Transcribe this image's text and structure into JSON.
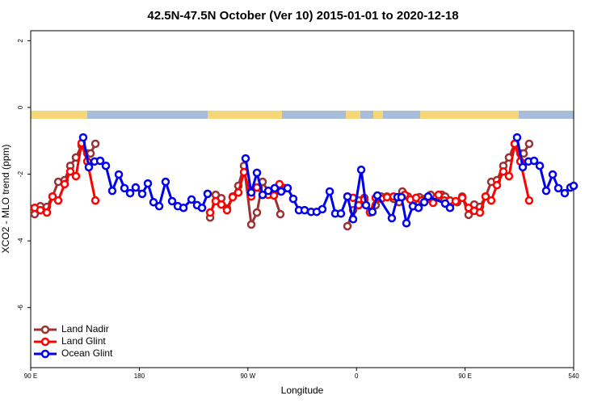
{
  "chart_data": {
    "type": "line",
    "title": "42.5N-47.5N October (Ver 10)   2015-01-01 to 2020-12-18",
    "x_label": "Longitude",
    "y_label": "XCO2 - MLO trend (ppm)",
    "xlim": [
      90,
      540
    ],
    "ylim": [
      -7.8,
      2.3
    ],
    "xticks": [
      {
        "value": 90,
        "label": "90 E"
      },
      180,
      {
        "value": 270,
        "label": "90 W"
      },
      {
        "value": 360,
        "label": "0"
      },
      {
        "value": 450,
        "label": "90 E"
      },
      540
    ],
    "yticks": [
      2,
      0,
      -2,
      -4,
      -6
    ],
    "legend": "bottom-left",
    "series": [
      {
        "name": "Land Nadir",
        "color": "#993333",
        "x": [
          93.3,
          98.0,
          103.4,
          108.1,
          112.8,
          118.1,
          122.8,
          127.5,
          132.2,
          136.9,
          139.6,
          143.6,
          150,
          238.7,
          243.3,
          248.0,
          252.7,
          257.4,
          262.1,
          266.8,
          272.8,
          277.5,
          282.2,
          286.9,
          291.6,
          296.9,
          330,
          352.5,
          357.2,
          361.9,
          366.5,
          371.2,
          375.9,
          380.6,
          385.3,
          390.7,
          395.3,
          398.0,
          402.7,
          407.4,
          412.1,
          416.8,
          421.5,
          426.1,
          430.8,
          433.5,
          438.2,
          443.5,
          447.6,
          452.9,
          457.6,
          462.3,
          467.0,
          471.7,
          476.4,
          481.7,
          486.4,
          491.1,
          495.8,
          498.5,
          503.1
        ],
        "values": [
          -3.2,
          -2.96,
          -2.98,
          -2.67,
          -2.23,
          -2.18,
          -1.75,
          -1.5,
          -1.14,
          -1.38,
          -1.38,
          -1.09,
          null,
          -3.3,
          -2.62,
          -2.72,
          -3.03,
          -2.67,
          -2.35,
          -1.75,
          -3.51,
          -3.15,
          -2.23,
          -2.52,
          -2.62,
          -3.2,
          null,
          -3.56,
          -3.08,
          -2.79,
          -2.71,
          -3.13,
          -2.93,
          -2.67,
          -2.67,
          -2.74,
          -2.84,
          -2.52,
          -2.67,
          -2.96,
          -2.69,
          -2.74,
          -2.62,
          -2.71,
          -2.62,
          -2.67,
          -2.88,
          -2.84,
          -2.67,
          -3.22,
          -2.91,
          -2.98,
          -2.67,
          -2.23,
          -2.18,
          -1.75,
          -1.5,
          -1.09,
          -1.38,
          -1.38,
          -1.09
        ]
      },
      {
        "name": "Land Glint",
        "color": "#ff0000",
        "x": [
          93.3,
          98.0,
          103.4,
          108.1,
          112.8,
          118.1,
          122.8,
          127.5,
          132.2,
          136.9,
          143.6,
          150,
          238.7,
          243.3,
          248.0,
          252.7,
          257.4,
          262.1,
          266.8,
          272.8,
          277.5,
          282.2,
          286.9,
          291.6,
          296.2,
          300.9,
          330,
          352.5,
          357.2,
          361.9,
          366.5,
          371.2,
          375.9,
          380.6,
          385.3,
          390.7,
          395.3,
          400.0,
          404.7,
          409.4,
          414.1,
          418.8,
          423.5,
          428.1,
          432.8,
          437.5,
          442.2,
          447.6,
          452.9,
          457.6,
          462.3,
          467.0,
          471.7,
          476.4,
          481.7,
          486.4,
          491.1,
          495.8,
          503.1
        ],
        "values": [
          -3.01,
          -3.08,
          -3.15,
          -2.67,
          -2.79,
          -2.3,
          -1.92,
          -2.06,
          -1.07,
          -1.62,
          -2.79,
          null,
          -3.15,
          -2.81,
          -2.91,
          -3.08,
          -2.69,
          -2.55,
          -1.94,
          -2.67,
          -2.4,
          -2.62,
          -2.62,
          -2.64,
          -2.3,
          -2.42,
          null,
          -2.67,
          -2.71,
          -2.93,
          -2.76,
          -3.15,
          -2.71,
          -2.74,
          -2.69,
          -2.67,
          -2.69,
          -2.62,
          -2.76,
          -2.71,
          -2.79,
          -2.74,
          -2.86,
          -2.62,
          -2.79,
          -2.79,
          -2.81,
          -2.71,
          -3.01,
          -3.1,
          -3.15,
          -2.67,
          -2.79,
          -2.33,
          -1.92,
          -2.06,
          -1.09,
          -1.62,
          -2.79
        ]
      },
      {
        "name": "Ocean Glint",
        "color": "#0000ee",
        "x": [
          133.5,
          138.2,
          142.9,
          147.6,
          152.3,
          157.6,
          163.0,
          167.7,
          172.4,
          177.0,
          182.4,
          187.1,
          191.8,
          196.5,
          201.8,
          207.2,
          211.9,
          216.6,
          223.3,
          227.9,
          232.0,
          236.6,
          250,
          268.1,
          272.8,
          277.5,
          282.2,
          286.9,
          292.2,
          297.6,
          302.9,
          307.6,
          312.3,
          317.0,
          322.4,
          327.0,
          331.7,
          337.8,
          342.4,
          347.1,
          352.5,
          357.2,
          363.9,
          367.9,
          373.2,
          377.3,
          389.3,
          394.0,
          397.3,
          401.4,
          406.7,
          411.4,
          416.1,
          419.4,
          433.5,
          437.5,
          470,
          493.1,
          497.8,
          502.5,
          507.2,
          511.9,
          517.2,
          522.6,
          527.3,
          532.6,
          537.3,
          540.0
        ],
        "values": [
          -0.9,
          -1.79,
          -1.62,
          -1.6,
          -1.75,
          -2.5,
          -2.01,
          -2.42,
          -2.57,
          -2.4,
          -2.59,
          -2.28,
          -2.84,
          -2.96,
          -2.23,
          -2.81,
          -2.96,
          -3.01,
          -2.76,
          -2.93,
          -3.01,
          -2.59,
          null,
          -1.53,
          -2.55,
          -1.96,
          -2.62,
          -2.5,
          -2.42,
          -2.52,
          -2.42,
          -2.74,
          -3.08,
          -3.08,
          -3.13,
          -3.13,
          -3.05,
          -2.52,
          -3.18,
          -3.18,
          -2.67,
          -3.35,
          -1.87,
          -2.93,
          -3.13,
          -2.64,
          -3.32,
          -2.69,
          -2.69,
          -3.47,
          -2.96,
          -3.01,
          -2.84,
          -2.67,
          -2.88,
          -3.01,
          null,
          -0.9,
          -1.79,
          -1.62,
          -1.6,
          -1.75,
          -2.5,
          -2.01,
          -2.42,
          -2.57,
          -2.4,
          -2.35
        ]
      }
    ]
  }
}
